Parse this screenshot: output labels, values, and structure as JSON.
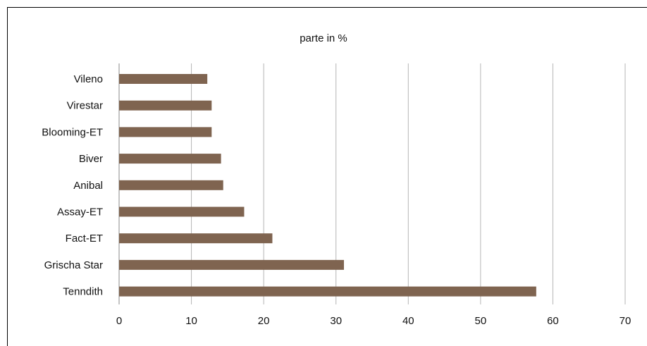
{
  "chart_data": {
    "type": "bar",
    "orientation": "horizontal",
    "title": "parte in %",
    "categories": [
      "Vileno",
      "Virestar",
      "Blooming-ET",
      "Biver",
      "Anibal",
      "Assay-ET",
      "Fact-ET",
      "Grischa Star",
      "Tenndith"
    ],
    "values": [
      12.2,
      12.8,
      12.8,
      14.1,
      14.4,
      17.3,
      21.2,
      31.1,
      57.7
    ],
    "xlim": [
      0,
      70
    ],
    "xticks": [
      "0",
      "10",
      "20",
      "30",
      "40",
      "50",
      "60",
      "70"
    ],
    "grid": "vertical",
    "legend": "none",
    "bar_color": "#7f6450",
    "grid_color": "#b5b5b5"
  }
}
